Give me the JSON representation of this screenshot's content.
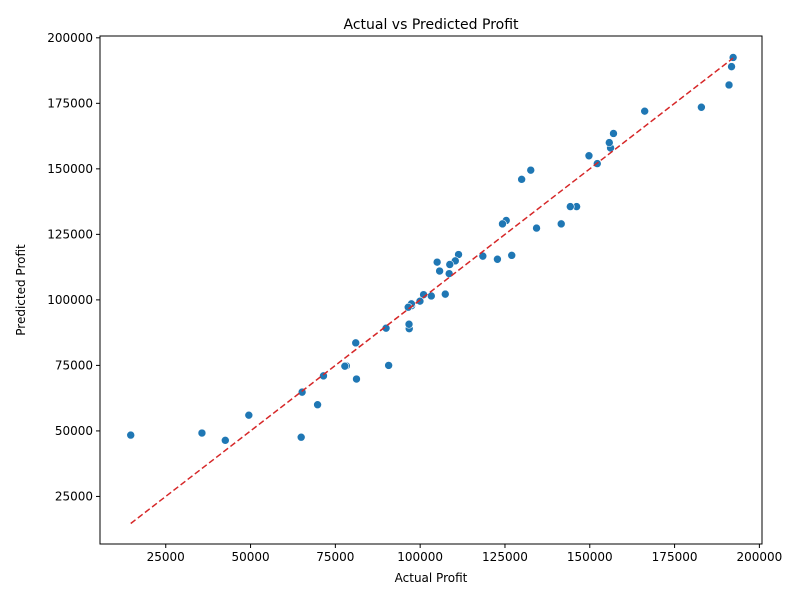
{
  "chart_data": {
    "type": "scatter",
    "title": "Actual vs Predicted Profit",
    "xlabel": "Actual Profit",
    "ylabel": "Predicted Profit",
    "xlim": [
      5619,
      200771
    ],
    "ylim": [
      6850,
      200690
    ],
    "xticks": [
      25000,
      50000,
      75000,
      100000,
      125000,
      150000,
      175000,
      200000
    ],
    "yticks": [
      25000,
      50000,
      75000,
      100000,
      125000,
      150000,
      175000,
      200000
    ],
    "xtick_labels": [
      "25000",
      "50000",
      "75000",
      "100000",
      "125000",
      "150000",
      "175000",
      "200000"
    ],
    "ytick_labels": [
      "25000",
      "50000",
      "75000",
      "100000",
      "125000",
      "150000",
      "175000",
      "200000"
    ],
    "grid": false,
    "point_color": "#1f77b4",
    "reference_line": {
      "color": "#d62728",
      "style": "dashed",
      "x": [
        14681,
        192262
      ],
      "y": [
        14681,
        192262
      ]
    },
    "points": [
      {
        "x": 192262,
        "y": 192500
      },
      {
        "x": 191792,
        "y": 189000
      },
      {
        "x": 191050,
        "y": 182000
      },
      {
        "x": 182902,
        "y": 173500
      },
      {
        "x": 166188,
        "y": 172000
      },
      {
        "x": 156991,
        "y": 163500
      },
      {
        "x": 156123,
        "y": 158000
      },
      {
        "x": 155753,
        "y": 160000
      },
      {
        "x": 152212,
        "y": 152000
      },
      {
        "x": 149760,
        "y": 155000
      },
      {
        "x": 146122,
        "y": 135600
      },
      {
        "x": 144259,
        "y": 135600
      },
      {
        "x": 141586,
        "y": 129000
      },
      {
        "x": 134307,
        "y": 127400
      },
      {
        "x": 132602,
        "y": 149500
      },
      {
        "x": 129917,
        "y": 146000
      },
      {
        "x": 126993,
        "y": 117000
      },
      {
        "x": 125370,
        "y": 130300
      },
      {
        "x": 124267,
        "y": 129000
      },
      {
        "x": 122777,
        "y": 115500
      },
      {
        "x": 118474,
        "y": 116700
      },
      {
        "x": 111314,
        "y": 117300
      },
      {
        "x": 110353,
        "y": 114900
      },
      {
        "x": 108734,
        "y": 113500
      },
      {
        "x": 108552,
        "y": 110000
      },
      {
        "x": 107404,
        "y": 102200
      },
      {
        "x": 105734,
        "y": 111000
      },
      {
        "x": 105008,
        "y": 114400
      },
      {
        "x": 103282,
        "y": 101500
      },
      {
        "x": 101004,
        "y": 102000
      },
      {
        "x": 99938,
        "y": 99500
      },
      {
        "x": 97484,
        "y": 97800
      },
      {
        "x": 97427,
        "y": 98500
      },
      {
        "x": 96779,
        "y": 89000
      },
      {
        "x": 96713,
        "y": 90700
      },
      {
        "x": 96479,
        "y": 97200
      },
      {
        "x": 90708,
        "y": 75000
      },
      {
        "x": 89950,
        "y": 89200
      },
      {
        "x": 81230,
        "y": 69800
      },
      {
        "x": 81006,
        "y": 83600
      },
      {
        "x": 78240,
        "y": 74800
      },
      {
        "x": 77799,
        "y": 74700
      },
      {
        "x": 71498,
        "y": 71000
      },
      {
        "x": 69759,
        "y": 60000
      },
      {
        "x": 65200,
        "y": 64800
      },
      {
        "x": 64927,
        "y": 47600
      },
      {
        "x": 49491,
        "y": 56000
      },
      {
        "x": 42560,
        "y": 46400
      },
      {
        "x": 35673,
        "y": 49200
      },
      {
        "x": 14681,
        "y": 48400
      }
    ]
  }
}
